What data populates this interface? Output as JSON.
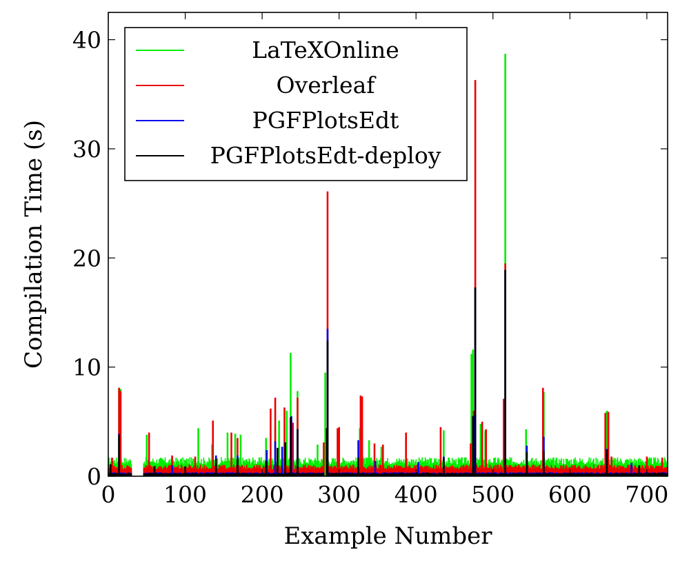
{
  "chart_data": {
    "type": "bar",
    "xlabel": "Example Number",
    "ylabel": "Compilation Time (s)",
    "xlim": [
      0,
      727
    ],
    "ylim": [
      0,
      42.5
    ],
    "xticks": [
      0,
      100,
      200,
      300,
      400,
      500,
      600,
      700
    ],
    "yticks": [
      0,
      10,
      20,
      30,
      40
    ],
    "legend_position": "top-left",
    "grid": false,
    "gaps": [
      [
        31,
        45
      ],
      [
        281,
        285
      ]
    ],
    "series": [
      {
        "name": "LaTeXOnline",
        "color": "#00ee00",
        "baseline": 1.4,
        "baseline_range": [
          0,
          727
        ],
        "spikes": [
          [
            14,
            8.1
          ],
          [
            16,
            8.0
          ],
          [
            50,
            3.8
          ],
          [
            117,
            4.4
          ],
          [
            135,
            2.9
          ],
          [
            155,
            4.0
          ],
          [
            165,
            3.9
          ],
          [
            172,
            3.8
          ],
          [
            205,
            3.5
          ],
          [
            217,
            4.4
          ],
          [
            222,
            5.1
          ],
          [
            232,
            6.0
          ],
          [
            237,
            11.3
          ],
          [
            246,
            7.8
          ],
          [
            272,
            2.9
          ],
          [
            282,
            9.5
          ],
          [
            285,
            12.6
          ],
          [
            300,
            4.4
          ],
          [
            327,
            4.4
          ],
          [
            339,
            3.3
          ],
          [
            355,
            2.7
          ],
          [
            387,
            3.6
          ],
          [
            436,
            4.2
          ],
          [
            472,
            11.2
          ],
          [
            474,
            11.6
          ],
          [
            477,
            17.0
          ],
          [
            484,
            4.8
          ],
          [
            490,
            4.2
          ],
          [
            516,
            38.7
          ],
          [
            543,
            4.3
          ],
          [
            566,
            7.7
          ],
          [
            648,
            6.0
          ]
        ]
      },
      {
        "name": "Overleaf",
        "color": "#ee0000",
        "baseline": 0.85,
        "baseline_range": [
          0,
          727
        ],
        "spikes": [
          [
            5,
            1.7
          ],
          [
            14,
            8.1
          ],
          [
            16,
            7.8
          ],
          [
            53,
            4.0
          ],
          [
            83,
            1.9
          ],
          [
            113,
            1.8
          ],
          [
            136,
            5.1
          ],
          [
            160,
            4.0
          ],
          [
            168,
            3.5
          ],
          [
            211,
            6.2
          ],
          [
            217,
            7.2
          ],
          [
            229,
            6.3
          ],
          [
            240,
            4.9
          ],
          [
            246,
            7.2
          ],
          [
            280,
            3.1
          ],
          [
            285,
            26.1
          ],
          [
            298,
            4.4
          ],
          [
            300,
            4.5
          ],
          [
            328,
            7.4
          ],
          [
            330,
            7.3
          ],
          [
            346,
            3.0
          ],
          [
            357,
            2.9
          ],
          [
            387,
            4.0
          ],
          [
            432,
            4.5
          ],
          [
            471,
            3.0
          ],
          [
            475,
            6.0
          ],
          [
            477,
            36.3
          ],
          [
            486,
            5.0
          ],
          [
            491,
            4.3
          ],
          [
            514,
            7.1
          ],
          [
            516,
            19.5
          ],
          [
            565,
            8.1
          ],
          [
            646,
            5.8
          ],
          [
            650,
            5.9
          ],
          [
            654,
            1.8
          ],
          [
            700,
            1.8
          ],
          [
            720,
            1.7
          ]
        ]
      },
      {
        "name": "PGFPlotsEdt",
        "color": "#0000ee",
        "baseline": 0.3,
        "baseline_range": [
          0,
          727
        ],
        "spikes": [
          [
            14,
            3.9
          ],
          [
            83,
            1.0
          ],
          [
            140,
            1.9
          ],
          [
            168,
            1.9
          ],
          [
            206,
            2.4
          ],
          [
            217,
            3.2
          ],
          [
            226,
            2.7
          ],
          [
            238,
            5.5
          ],
          [
            246,
            4.3
          ],
          [
            285,
            13.5
          ],
          [
            325,
            3.3
          ],
          [
            347,
            1.4
          ],
          [
            403,
            1.3
          ],
          [
            436,
            1.8
          ],
          [
            476,
            5.6
          ],
          [
            477,
            17.3
          ],
          [
            516,
            18.9
          ],
          [
            544,
            2.8
          ],
          [
            566,
            3.6
          ],
          [
            648,
            2.5
          ],
          [
            680,
            1.2
          ]
        ]
      },
      {
        "name": "PGFPlotsEdt-deploy",
        "color": "#000000",
        "baseline": 0.25,
        "baseline_range": [
          0,
          727
        ],
        "spikes": [
          [
            3,
            1.1
          ],
          [
            14,
            3.8
          ],
          [
            60,
            0.9
          ],
          [
            100,
            0.9
          ],
          [
            140,
            1.6
          ],
          [
            168,
            1.6
          ],
          [
            205,
            1.4
          ],
          [
            220,
            2.6
          ],
          [
            230,
            3.1
          ],
          [
            237,
            5.4
          ],
          [
            246,
            4.3
          ],
          [
            284,
            4.4
          ],
          [
            285,
            12.4
          ],
          [
            325,
            1.7
          ],
          [
            436,
            1.7
          ],
          [
            474,
            5.5
          ],
          [
            477,
            17.3
          ],
          [
            516,
            18.9
          ],
          [
            544,
            2.2
          ],
          [
            566,
            2.3
          ],
          [
            648,
            2.4
          ],
          [
            690,
            1.0
          ]
        ]
      }
    ]
  }
}
